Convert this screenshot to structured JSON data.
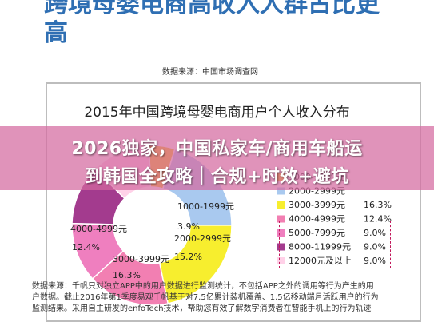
{
  "headline": {
    "line1": "跨境母婴电商高收入人群占比更",
    "line2": "高"
  },
  "source_note": "数据来源：中国市场调查网",
  "banner": {
    "line1": "2026独家，中国私家车/商用车船运",
    "line2": "到韩国全攻略｜合规+时效+避坑"
  },
  "footer": [
    "数据来源：千帆只对独立APP中的用户数据进行监测统计，不包括APP之外的调用等行为产生的用",
    "户数据。截止2016年第1季度易观千帆基于对7.5亿累计装机覆盖、1.5亿移动端月活跃用户的行为",
    "监测结果。采用自主研发的enfoTech技术，帮助您有效了解数字消费者在智能手机上的行为轨迹"
  ],
  "chart_data": {
    "type": "pie",
    "title": "2015年中国跨境母婴电商用户个人收入分布",
    "categories": [
      "1000-1999元",
      "2000-2999元",
      "3000-3999元",
      "4000-4999元",
      "5000-7999元",
      "8000-11999元",
      "12000元及以上"
    ],
    "values": [
      3.9,
      15.2,
      16.3,
      12.4,
      9.0,
      9.0,
      9.0
    ],
    "labels": [
      "3.9%",
      "15.2%",
      "16.3%",
      "12.4%",
      "9.0%",
      "9.0%",
      "9.0%"
    ],
    "colors": [
      "#f5c518",
      "#a9c9ef",
      "#f7ee2e",
      "#f27fb2",
      "#ef7fbf",
      "#a33b8e",
      "#ffd1e8"
    ],
    "legend_visible": [
      "1000-1999元",
      "2000-2999元",
      "3000-3999元",
      "4000-4999元",
      "5000-7999元",
      "8000-11999元",
      "12000元及以上"
    ],
    "legend_values": [
      "16.3%",
      "12.4%",
      "9.0%",
      "9.0%",
      "9.0%"
    ],
    "legend_position": "right",
    "donut": true
  }
}
